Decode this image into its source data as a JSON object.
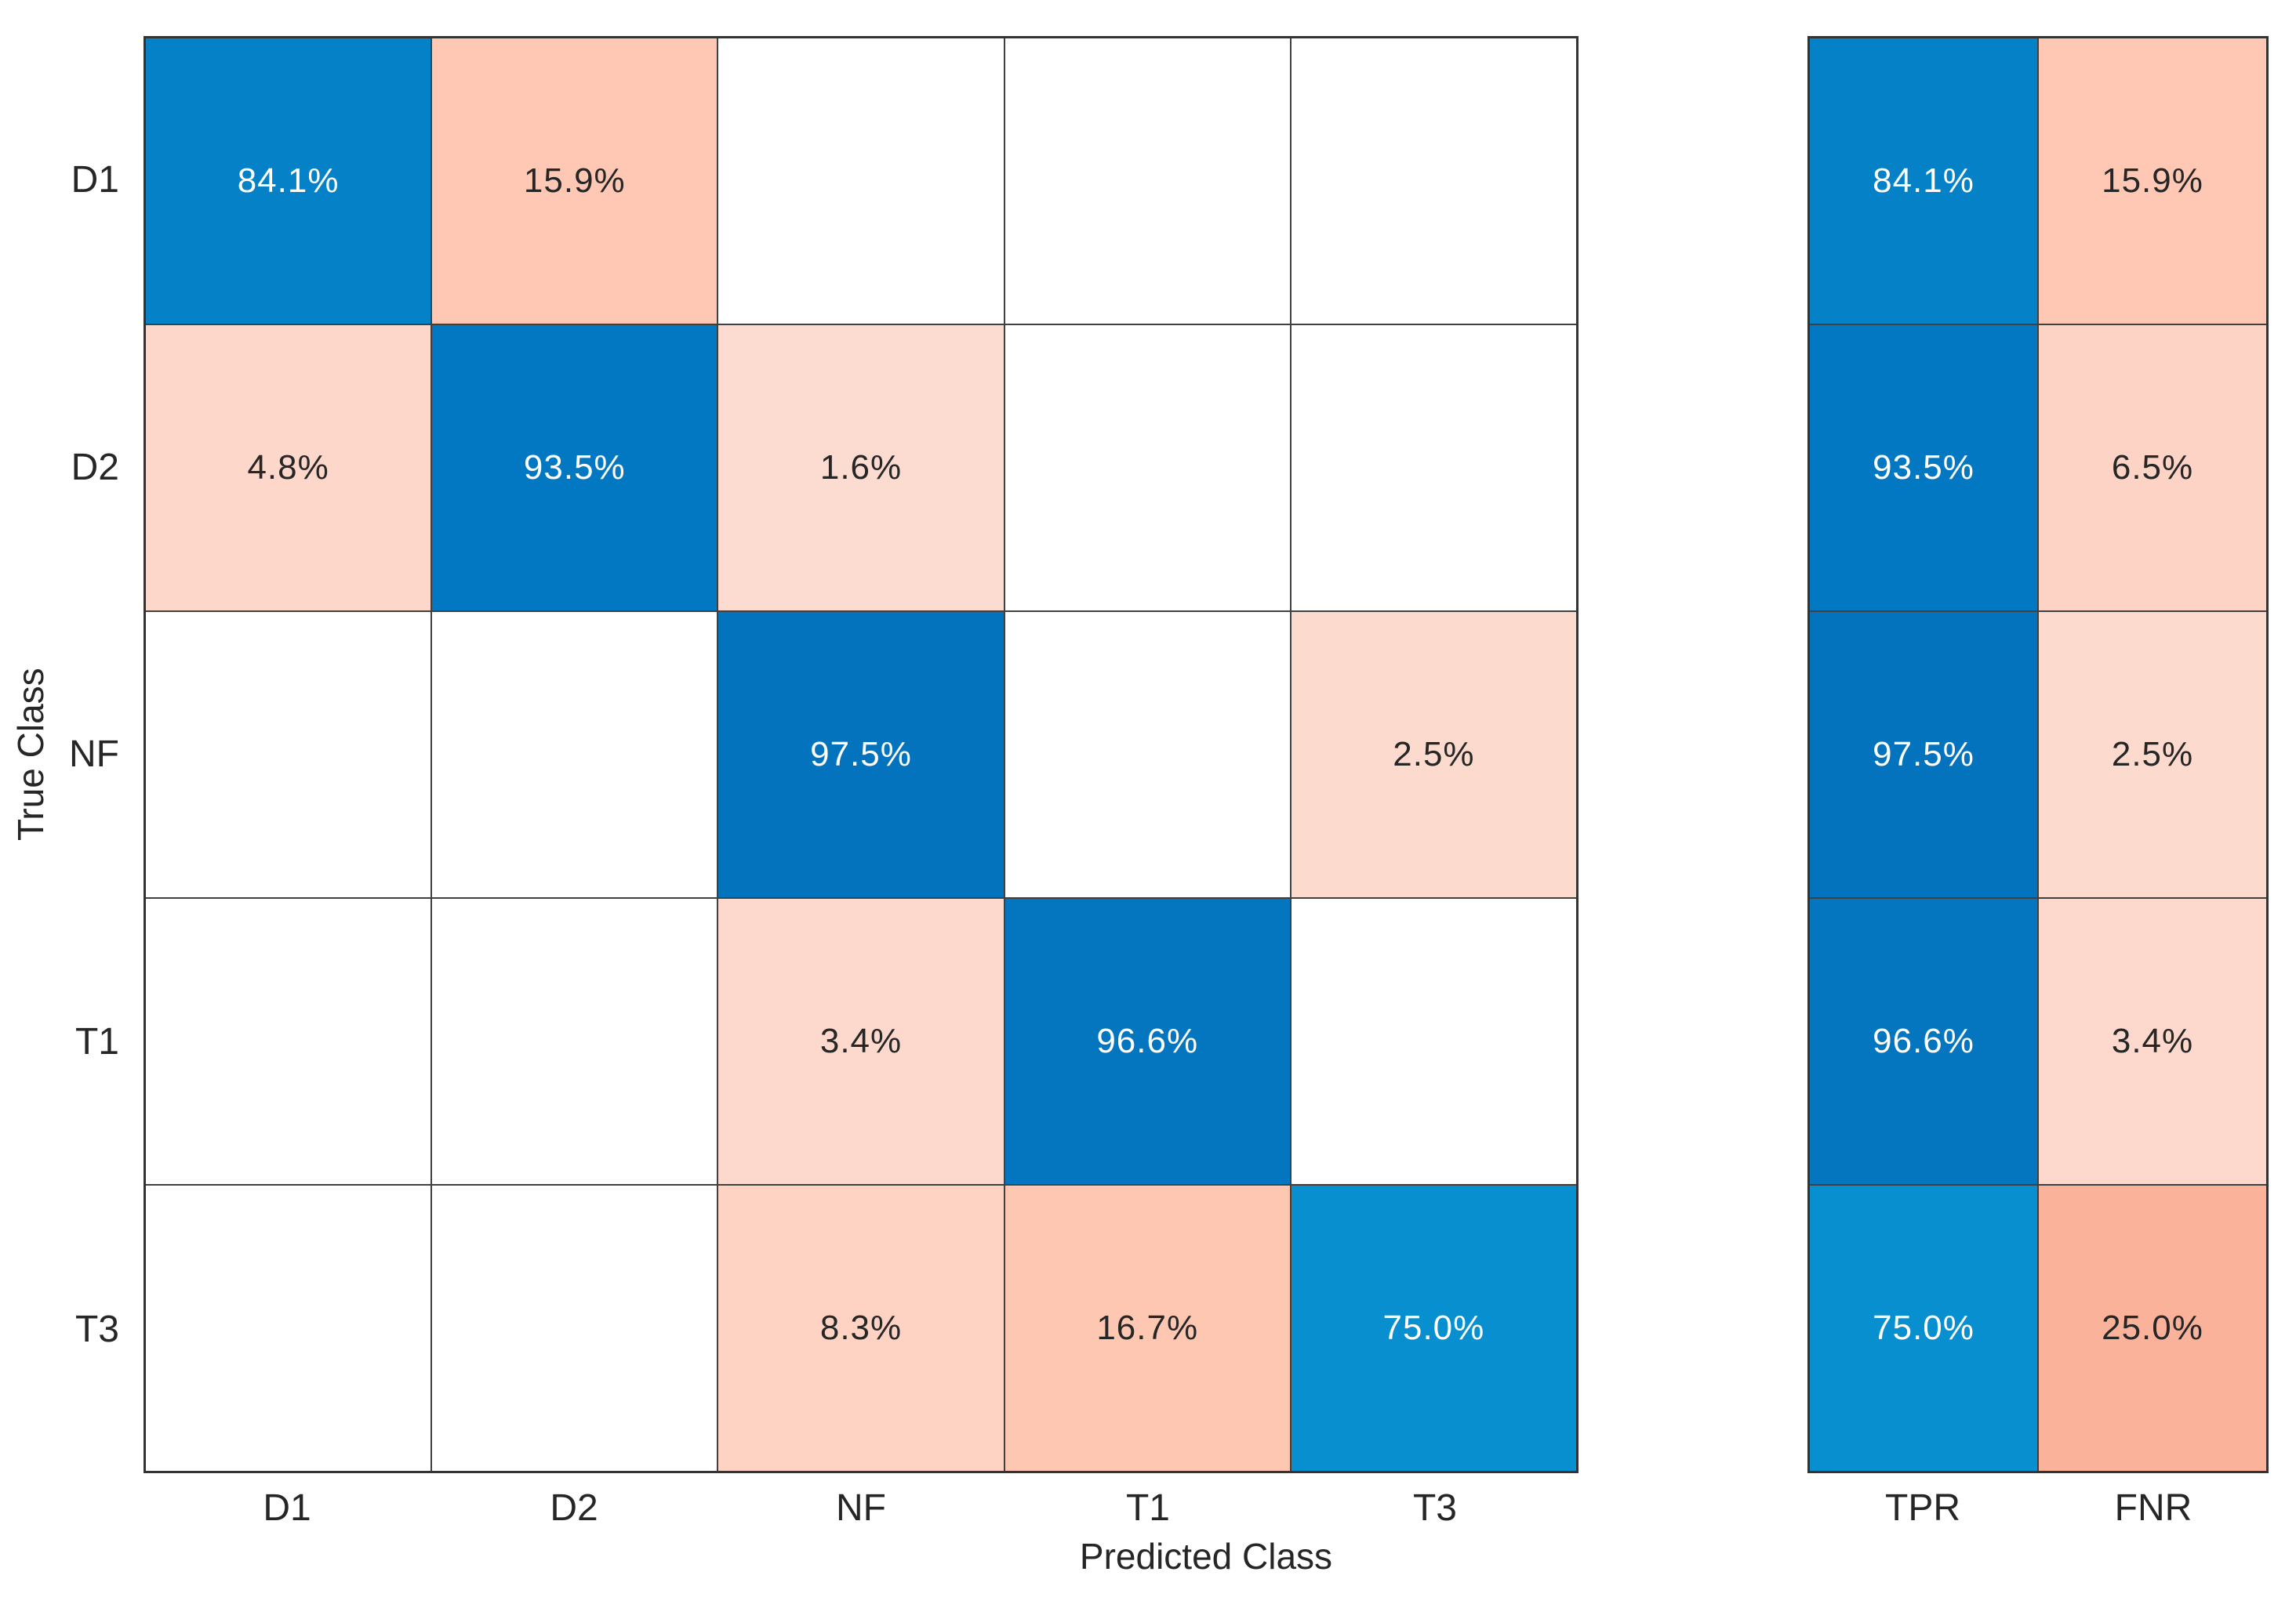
{
  "chart_data": {
    "type": "heatmap",
    "subtype": "confusion-matrix",
    "title": "",
    "xlabel": "Predicted Class",
    "ylabel": "True Class",
    "classes": [
      "D1",
      "D2",
      "NF",
      "T1",
      "T3"
    ],
    "true_class_labels": [
      "D1",
      "D2",
      "NF",
      "T1",
      "T3"
    ],
    "predicted_class_labels": [
      "D1",
      "D2",
      "NF",
      "T1",
      "T3"
    ],
    "matrix_percent": [
      [
        84.1,
        15.9,
        null,
        null,
        null
      ],
      [
        4.8,
        93.5,
        1.6,
        null,
        null
      ],
      [
        null,
        null,
        97.5,
        null,
        2.5
      ],
      [
        null,
        null,
        3.4,
        96.6,
        null
      ],
      [
        null,
        null,
        8.3,
        16.7,
        75.0
      ]
    ],
    "matrix_labels": [
      [
        "84.1%",
        "15.9%",
        "",
        "",
        ""
      ],
      [
        "4.8%",
        "93.5%",
        "1.6%",
        "",
        ""
      ],
      [
        "",
        "",
        "97.5%",
        "",
        "2.5%"
      ],
      [
        "",
        "",
        "3.4%",
        "96.6%",
        ""
      ],
      [
        "",
        "",
        "8.3%",
        "16.7%",
        "75.0%"
      ]
    ],
    "matrix_cell_colors": [
      [
        "#0481C7",
        "#FEC8B4",
        "#FFFFFF",
        "#FFFFFF",
        "#FFFFFF"
      ],
      [
        "#FDD7CA",
        "#0378C2",
        "#FCDCD1",
        "#FFFFFF",
        "#FFFFFF"
      ],
      [
        "#FFFFFF",
        "#FFFFFF",
        "#0473BE",
        "#FFFFFF",
        "#FDDACE"
      ],
      [
        "#FFFFFF",
        "#FFFFFF",
        "#FCD9CC",
        "#0475BF",
        "#FFFFFF"
      ],
      [
        "#FFFFFF",
        "#FFFFFF",
        "#FED3C3",
        "#FEC7B2",
        "#078FCF"
      ]
    ],
    "row_summary": {
      "columns": [
        "TPR",
        "FNR"
      ],
      "values_percent": [
        [
          84.1,
          15.9
        ],
        [
          93.5,
          6.5
        ],
        [
          97.5,
          2.5
        ],
        [
          96.6,
          3.4
        ],
        [
          75.0,
          25.0
        ]
      ],
      "labels": [
        [
          "84.1%",
          "15.9%"
        ],
        [
          "93.5%",
          "6.5%"
        ],
        [
          "97.5%",
          "2.5%"
        ],
        [
          "96.6%",
          "3.4%"
        ],
        [
          "75.0%",
          "25.0%"
        ]
      ],
      "cell_colors": [
        [
          "#0481C7",
          "#FEC8B4"
        ],
        [
          "#0378C2",
          "#FCD3C5"
        ],
        [
          "#0473BE",
          "#FDDACE"
        ],
        [
          "#0475BF",
          "#FCD9CC"
        ],
        [
          "#078FCF",
          "#FAB29B"
        ]
      ]
    },
    "colors": {
      "diagonal_blue_max": "#0473BE",
      "diagonal_blue_min": "#078FCF",
      "offdiagonal_salmon_max": "#FAB29B",
      "offdiagonal_salmon_min": "#FCDCD1",
      "empty_cell": "#FFFFFF",
      "gridline": "#404040",
      "text_on_blue": "#FFFFFF",
      "text_on_light": "#262626",
      "background": "#FFFFFF"
    },
    "layout": {
      "legend": "none",
      "grid": "on",
      "value_format": "percent-one-decimal"
    }
  }
}
